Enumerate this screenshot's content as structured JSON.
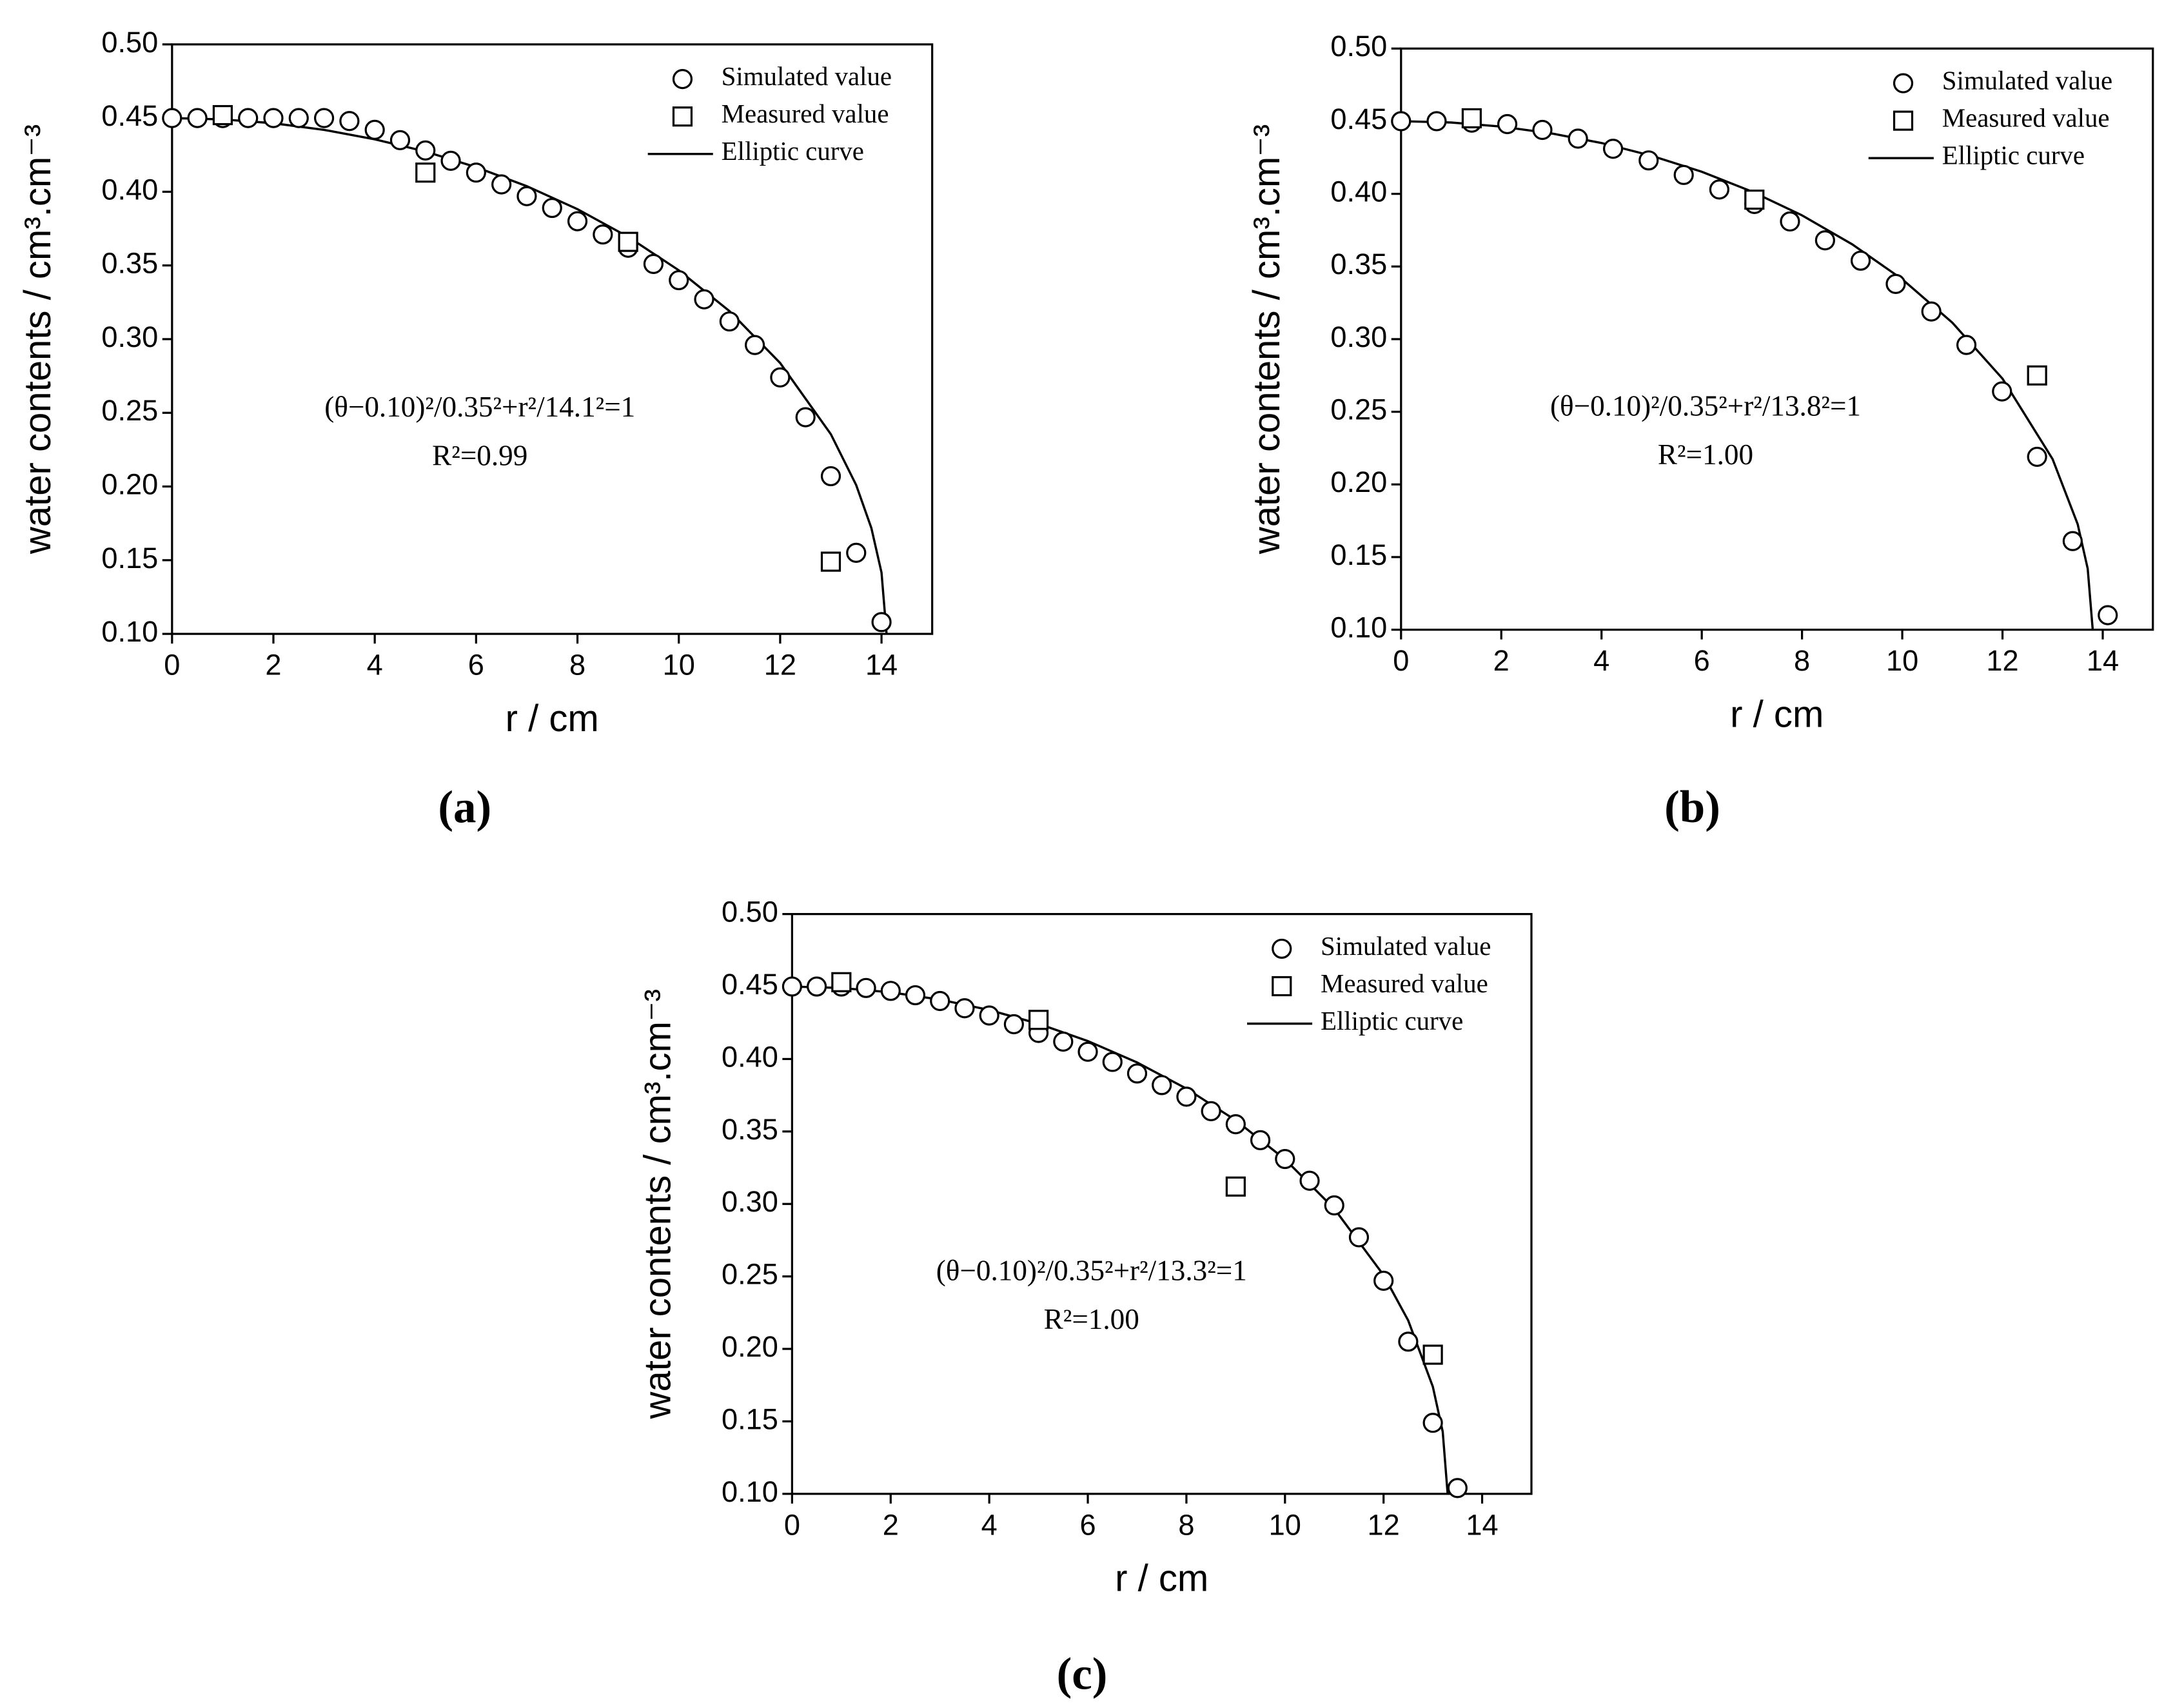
{
  "chart_data": [
    {
      "type": "scatter",
      "label": "(a)",
      "xlim": [
        0,
        15
      ],
      "ylim": [
        0.1,
        0.5
      ],
      "xticks": [
        0,
        2,
        4,
        6,
        8,
        10,
        12,
        14
      ],
      "yticks": [
        {
          "value": 0.1,
          "label": "0.10"
        },
        0.15,
        {
          "value": 0.2,
          "label": "0.20"
        },
        0.25,
        {
          "value": 0.3,
          "label": "0.30"
        },
        0.35,
        {
          "value": 0.4,
          "label": "0.40"
        },
        0.45,
        {
          "value": 0.5,
          "label": "0.50"
        }
      ],
      "x_label": "r / cm",
      "y_label": "water contents / cm³.cm⁻³",
      "legend": "upper right",
      "annotations": [
        "(θ−0.10)²/0.35²+r²/14.1²=1",
        "R²=0.99"
      ],
      "series": [
        {
          "name": "Simulated value",
          "marker": "circle",
          "color": "#000000",
          "x": [
            0,
            0.5,
            1,
            1.5,
            2,
            2.5,
            3,
            3.5,
            4,
            4.5,
            5,
            5.5,
            6,
            6.5,
            7,
            7.5,
            8,
            8.5,
            9,
            9.5,
            10,
            10.5,
            11,
            11.5,
            12,
            12.5,
            13,
            13.5,
            14
          ],
          "values": [
            0.45,
            0.45,
            0.45,
            0.45,
            0.45,
            0.45,
            0.45,
            0.448,
            0.442,
            0.435,
            0.428,
            0.421,
            0.413,
            0.405,
            0.397,
            0.389,
            0.38,
            0.371,
            0.362,
            0.351,
            0.34,
            0.327,
            0.312,
            0.296,
            0.274,
            0.247,
            0.207,
            0.155,
            0.108
          ]
        },
        {
          "name": "Measured value",
          "marker": "square",
          "color": "#000000",
          "x": [
            1,
            5,
            9,
            13
          ],
          "values": [
            0.452,
            0.413,
            0.366,
            0.149
          ]
        },
        {
          "name": "Elliptic curve",
          "marker": "line",
          "color": "#000000",
          "x": [
            0,
            1,
            2,
            3,
            4,
            5,
            6,
            7,
            8,
            9,
            10,
            11,
            12,
            13,
            13.5,
            13.8,
            14,
            14.1
          ],
          "values": [
            0.45,
            0.4491,
            0.4465,
            0.442,
            0.4356,
            0.4273,
            0.4167,
            0.4038,
            0.3882,
            0.3694,
            0.3467,
            0.319,
            0.2838,
            0.2355,
            0.201,
            0.1718,
            0.1416,
            0.1
          ]
        }
      ]
    },
    {
      "type": "scatter",
      "label": "(b)",
      "xlim": [
        0,
        15
      ],
      "ylim": [
        0.1,
        0.5
      ],
      "xticks": [
        0,
        2,
        4,
        6,
        8,
        10,
        12,
        14
      ],
      "yticks": [
        {
          "value": 0.1,
          "label": "0.10"
        },
        0.15,
        {
          "value": 0.2,
          "label": "0.20"
        },
        0.25,
        {
          "value": 0.3,
          "label": "0.30"
        },
        0.35,
        {
          "value": 0.4,
          "label": "0.40"
        },
        0.45,
        {
          "value": 0.5,
          "label": "0.50"
        }
      ],
      "x_label": "r / cm",
      "y_label": "water contents / cm³.cm⁻³",
      "legend": "upper right",
      "annotations": [
        "(θ−0.10)²/0.35²+r²/13.8²=1",
        "R²=1.00"
      ],
      "series": [
        {
          "name": "Simulated value",
          "marker": "circle",
          "color": "#000000",
          "x": [
            0,
            0.71,
            1.41,
            2.12,
            2.82,
            3.53,
            4.23,
            4.94,
            5.64,
            6.35,
            7.05,
            7.76,
            8.46,
            9.17,
            9.87,
            10.58,
            11.28,
            11.99,
            12.69,
            13.4,
            14.1
          ],
          "values": [
            0.45,
            0.45,
            0.449,
            0.448,
            0.444,
            0.438,
            0.431,
            0.423,
            0.413,
            0.403,
            0.393,
            0.381,
            0.368,
            0.354,
            0.338,
            0.319,
            0.296,
            0.264,
            0.219,
            0.161,
            0.11
          ]
        },
        {
          "name": "Measured value",
          "marker": "square",
          "color": "#000000",
          "x": [
            1.41,
            7.05,
            12.69
          ],
          "values": [
            0.452,
            0.396,
            0.275
          ]
        },
        {
          "name": "Elliptic curve",
          "marker": "line",
          "color": "#000000",
          "x": [
            0,
            1,
            2,
            3,
            4,
            5,
            6,
            7,
            8,
            9,
            10,
            11,
            12,
            13,
            13.5,
            13.7,
            13.8
          ],
          "values": [
            0.45,
            0.4491,
            0.4463,
            0.4416,
            0.435,
            0.4262,
            0.4152,
            0.4016,
            0.3852,
            0.3653,
            0.3412,
            0.3113,
            0.2728,
            0.2174,
            0.1726,
            0.142,
            0.1
          ]
        }
      ]
    },
    {
      "type": "scatter",
      "label": "(c)",
      "xlim": [
        0,
        15
      ],
      "ylim": [
        0.1,
        0.5
      ],
      "xticks": [
        0,
        2,
        4,
        6,
        8,
        10,
        12,
        14
      ],
      "yticks": [
        {
          "value": 0.1,
          "label": "0.10"
        },
        0.15,
        {
          "value": 0.2,
          "label": "0.20"
        },
        0.25,
        {
          "value": 0.3,
          "label": "0.30"
        },
        0.35,
        {
          "value": 0.4,
          "label": "0.40"
        },
        0.45,
        {
          "value": 0.5,
          "label": "0.50"
        }
      ],
      "x_label": "r / cm",
      "y_label": "water contents / cm³.cm⁻³",
      "legend": "upper right",
      "annotations": [
        "(θ−0.10)²/0.35²+r²/13.3²=1",
        "R²=1.00"
      ],
      "series": [
        {
          "name": "Simulated value",
          "marker": "circle",
          "color": "#000000",
          "x": [
            0,
            0.5,
            1,
            1.5,
            2,
            2.5,
            3,
            3.5,
            4,
            4.5,
            5,
            5.5,
            6,
            6.5,
            7,
            7.5,
            8,
            8.5,
            9,
            9.5,
            10,
            10.5,
            11,
            11.5,
            12,
            12.5,
            13,
            13.5
          ],
          "values": [
            0.45,
            0.45,
            0.45,
            0.449,
            0.447,
            0.444,
            0.44,
            0.435,
            0.43,
            0.424,
            0.418,
            0.412,
            0.405,
            0.398,
            0.39,
            0.382,
            0.374,
            0.364,
            0.355,
            0.344,
            0.331,
            0.316,
            0.299,
            0.277,
            0.247,
            0.205,
            0.149,
            0.104
          ]
        },
        {
          "name": "Measured value",
          "marker": "square",
          "color": "#000000",
          "x": [
            1,
            5,
            9,
            13
          ],
          "values": [
            0.453,
            0.427,
            0.312,
            0.196
          ]
        },
        {
          "name": "Elliptic curve",
          "marker": "line",
          "color": "#000000",
          "x": [
            0,
            1,
            2,
            3,
            4,
            5,
            6,
            7,
            8,
            9,
            10,
            11,
            12,
            12.5,
            13,
            13.2,
            13.3
          ],
          "values": [
            0.45,
            0.449,
            0.446,
            0.441,
            0.4338,
            0.4243,
            0.4124,
            0.3976,
            0.3796,
            0.3577,
            0.3308,
            0.2967,
            0.2509,
            0.2196,
            0.1739,
            0.1429,
            0.1
          ]
        }
      ]
    }
  ]
}
